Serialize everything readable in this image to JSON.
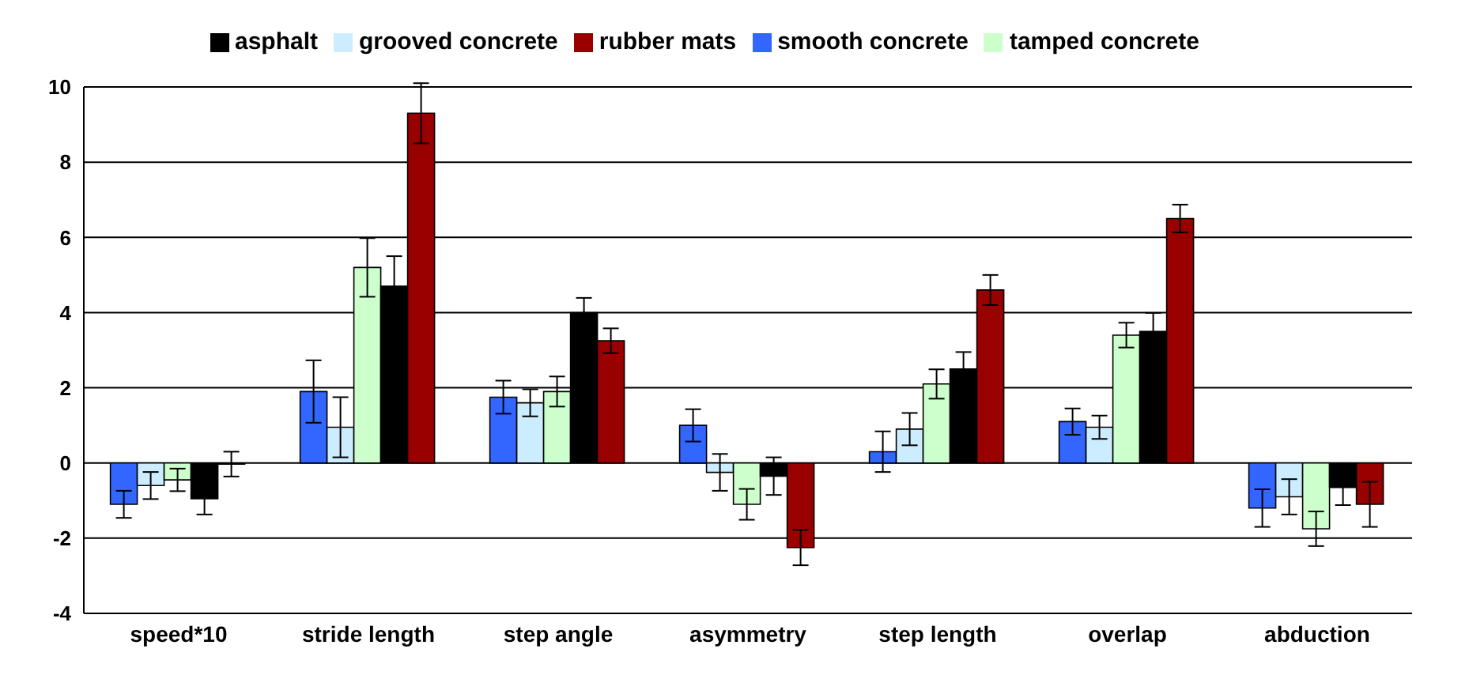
{
  "chart_data": {
    "type": "bar",
    "categories": [
      "speed*10",
      "stride length",
      "step angle",
      "asymmetry",
      "step length",
      "overlap",
      "abduction"
    ],
    "series": [
      {
        "name": "smooth concrete",
        "color": "#3366ff",
        "values": [
          -1.1,
          1.9,
          1.75,
          1.0,
          0.3,
          1.1,
          -1.2
        ],
        "errors": [
          0.36,
          0.83,
          0.44,
          0.43,
          0.54,
          0.35,
          0.5
        ]
      },
      {
        "name": "grooved concrete",
        "color": "#ccecff",
        "values": [
          -0.6,
          0.95,
          1.6,
          -0.25,
          0.9,
          0.95,
          -0.9
        ],
        "errors": [
          0.36,
          0.8,
          0.36,
          0.49,
          0.43,
          0.31,
          0.47
        ]
      },
      {
        "name": "tamped concrete",
        "color": "#ccffcc",
        "values": [
          -0.45,
          5.2,
          1.9,
          -1.1,
          2.1,
          3.4,
          -1.75
        ],
        "errors": [
          0.3,
          0.78,
          0.4,
          0.41,
          0.39,
          0.33,
          0.46
        ]
      },
      {
        "name": "asphalt",
        "color": "#000000",
        "values": [
          -0.95,
          4.7,
          4.0,
          -0.35,
          2.5,
          3.5,
          -0.65
        ],
        "errors": [
          0.42,
          0.8,
          0.39,
          0.5,
          0.45,
          0.49,
          0.47
        ]
      },
      {
        "name": "rubber mats",
        "color": "#990000",
        "values": [
          -0.03,
          9.3,
          3.25,
          -2.25,
          4.6,
          6.5,
          -1.1
        ],
        "errors": [
          0.33,
          0.8,
          0.33,
          0.47,
          0.4,
          0.37,
          0.6
        ]
      }
    ],
    "ylim": [
      -4,
      10
    ],
    "yticks": [
      -4,
      -2,
      0,
      2,
      4,
      6,
      8,
      10
    ],
    "grid": "y",
    "legend": "top"
  }
}
